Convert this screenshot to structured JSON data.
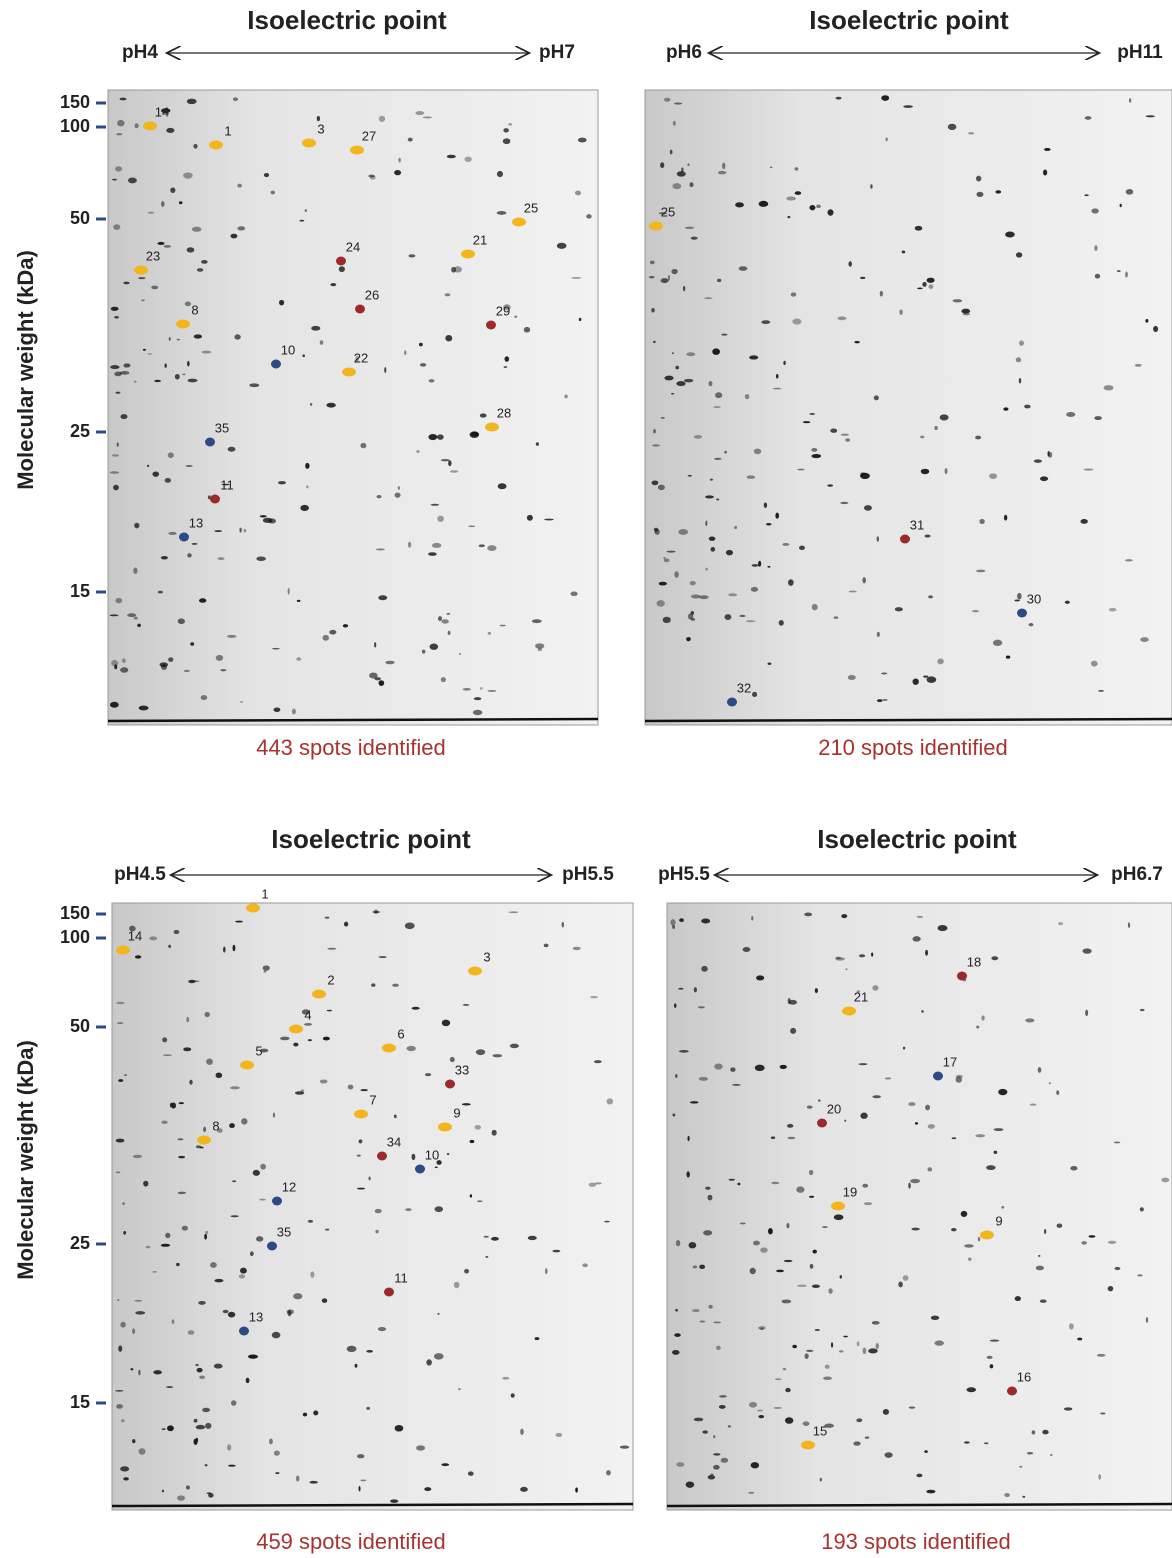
{
  "panels": [
    {
      "axis_title": "Isoelectric point",
      "ph_left": "pH4",
      "ph_right": "pH7",
      "y_axis_title": "Molecular weight (kDa)",
      "mw_ticks": [
        "150",
        "100",
        "50",
        "25",
        "15"
      ],
      "spots": [
        "14",
        "1",
        "3",
        "27",
        "25",
        "23",
        "24",
        "21",
        "8",
        "26",
        "29",
        "10",
        "22",
        "35",
        "28",
        "11",
        "13"
      ],
      "caption": "443 spots identified"
    },
    {
      "axis_title": "Isoelectric point",
      "ph_left": "pH6",
      "ph_right": "pH11",
      "spots": [
        "25",
        "31",
        "30",
        "32"
      ],
      "caption": "210 spots identified"
    },
    {
      "axis_title": "Isoelectric point",
      "ph_left": "pH4.5",
      "ph_right": "pH5.5",
      "y_axis_title": "Molecular weight (kDa)",
      "mw_ticks": [
        "150",
        "100",
        "50",
        "25",
        "15"
      ],
      "spots": [
        "14",
        "1",
        "2",
        "3",
        "4",
        "6",
        "5",
        "33",
        "7",
        "8",
        "9",
        "34",
        "10",
        "12",
        "35",
        "11",
        "13"
      ],
      "caption": "459 spots identified"
    },
    {
      "axis_title": "Isoelectric point",
      "ph_left": "pH5.5",
      "ph_right": "pH6.7",
      "spots": [
        "18",
        "21",
        "17",
        "20",
        "19",
        "9",
        "16",
        "15"
      ],
      "caption": "193 spots identified"
    }
  ]
}
